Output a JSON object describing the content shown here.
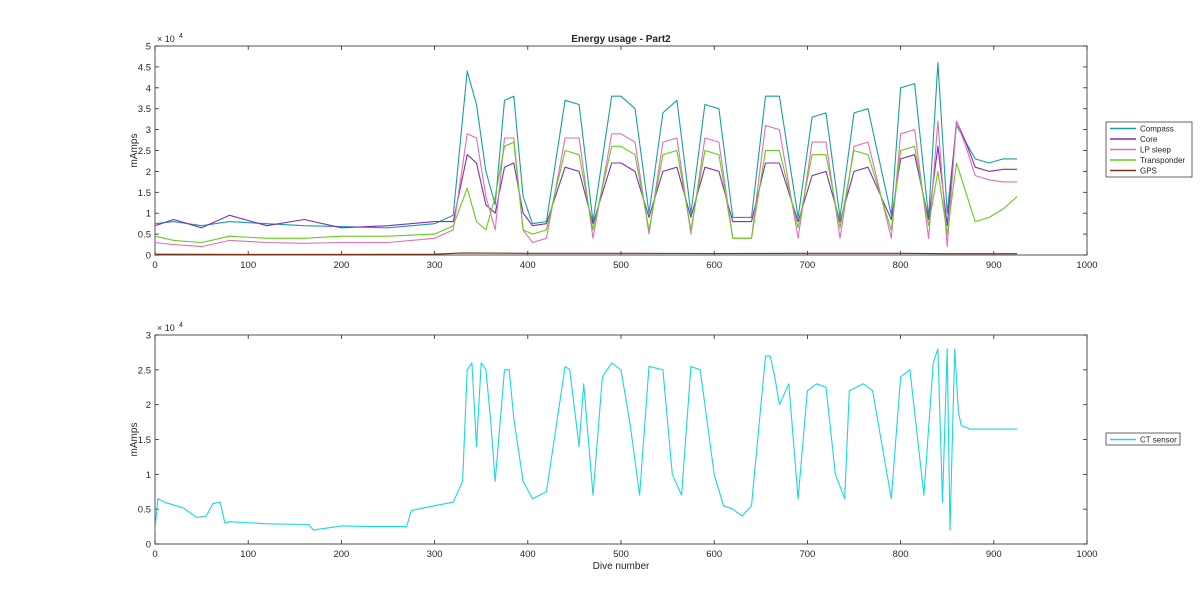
{
  "chart_data": [
    {
      "type": "line",
      "title": "Energy usage - Part2",
      "xlabel": "",
      "ylabel": "mAmps",
      "y_exponent_label": "× 10",
      "y_exponent": "4",
      "xlim": [
        0,
        1000
      ],
      "ylim": [
        0,
        50000
      ],
      "xticks": [
        0,
        100,
        200,
        300,
        400,
        500,
        600,
        700,
        800,
        900,
        1000
      ],
      "yticks": [
        0,
        5000,
        10000,
        15000,
        20000,
        25000,
        30000,
        35000,
        40000,
        45000,
        50000
      ],
      "ytick_labels": [
        "0",
        "0.5",
        "1",
        "1.5",
        "2",
        "2.5",
        "3",
        "3.5",
        "4",
        "4.5",
        "5"
      ],
      "grid": false,
      "legend": "outside-right",
      "series": [
        {
          "name": "Compass",
          "color": "#1a9e9e",
          "x": [
            0,
            20,
            50,
            80,
            120,
            160,
            200,
            250,
            300,
            320,
            335,
            345,
            355,
            365,
            375,
            385,
            395,
            405,
            420,
            440,
            455,
            470,
            490,
            500,
            515,
            530,
            545,
            560,
            575,
            590,
            605,
            620,
            640,
            655,
            670,
            690,
            705,
            720,
            735,
            750,
            765,
            790,
            800,
            815,
            830,
            840,
            850,
            860,
            870,
            880,
            895,
            910,
            925
          ],
          "y": [
            7500,
            8000,
            7000,
            8000,
            7500,
            7000,
            6800,
            6500,
            7500,
            9500,
            44000,
            36000,
            20000,
            12000,
            37000,
            38000,
            14000,
            7500,
            8000,
            37000,
            36000,
            8000,
            38000,
            38000,
            35000,
            10000,
            34000,
            37000,
            10000,
            36000,
            35000,
            9000,
            9000,
            38000,
            38000,
            9000,
            33000,
            34000,
            9000,
            34000,
            35000,
            9500,
            40000,
            41000,
            9000,
            46000,
            10000,
            31000,
            27000,
            23000,
            22000,
            23000,
            23000
          ]
        },
        {
          "name": "Core",
          "color": "#7b2fbf",
          "x": [
            0,
            20,
            50,
            80,
            120,
            160,
            200,
            250,
            300,
            320,
            335,
            345,
            355,
            365,
            375,
            385,
            395,
            405,
            420,
            440,
            455,
            470,
            490,
            500,
            515,
            530,
            545,
            560,
            575,
            590,
            605,
            620,
            640,
            655,
            670,
            690,
            705,
            720,
            735,
            750,
            765,
            790,
            800,
            815,
            830,
            840,
            850,
            860,
            870,
            880,
            895,
            910,
            925
          ],
          "y": [
            7000,
            8500,
            6500,
            9500,
            7000,
            8500,
            6500,
            7000,
            8000,
            8000,
            24000,
            22000,
            12000,
            10000,
            21000,
            22000,
            10000,
            7000,
            7500,
            21000,
            20000,
            7500,
            22000,
            22000,
            20000,
            9000,
            20000,
            21000,
            9000,
            21000,
            20000,
            8000,
            8000,
            22000,
            22000,
            8000,
            19000,
            20000,
            8000,
            20000,
            21000,
            8500,
            23000,
            24000,
            8500,
            26000,
            7000,
            32000,
            27000,
            21000,
            20000,
            20500,
            20500
          ]
        },
        {
          "name": "LP sleep",
          "color": "#e070b5",
          "x": [
            0,
            20,
            50,
            80,
            120,
            160,
            200,
            250,
            300,
            320,
            335,
            345,
            355,
            365,
            375,
            385,
            395,
            405,
            420,
            440,
            455,
            470,
            490,
            500,
            515,
            530,
            545,
            560,
            575,
            590,
            605,
            620,
            640,
            655,
            670,
            690,
            705,
            720,
            735,
            750,
            765,
            790,
            800,
            815,
            830,
            840,
            850,
            860,
            870,
            880,
            895,
            910,
            925
          ],
          "y": [
            3000,
            2500,
            2000,
            3500,
            3000,
            2800,
            3000,
            3000,
            4000,
            6000,
            29000,
            28000,
            14000,
            6000,
            28000,
            28000,
            6000,
            3000,
            4000,
            28000,
            28000,
            4000,
            29000,
            29000,
            27000,
            5000,
            27000,
            28000,
            5000,
            28000,
            27000,
            4000,
            4000,
            31000,
            30000,
            4000,
            27000,
            27000,
            4000,
            26000,
            27000,
            4000,
            29000,
            30000,
            4000,
            32000,
            2000,
            32000,
            26000,
            19000,
            18000,
            17500,
            17500
          ]
        },
        {
          "name": "Transponder",
          "color": "#66cc1a",
          "x": [
            0,
            20,
            50,
            80,
            120,
            160,
            200,
            250,
            300,
            320,
            335,
            345,
            355,
            365,
            375,
            385,
            395,
            405,
            420,
            440,
            455,
            470,
            490,
            500,
            515,
            530,
            545,
            560,
            575,
            590,
            605,
            620,
            640,
            655,
            670,
            690,
            705,
            720,
            735,
            750,
            765,
            790,
            800,
            815,
            830,
            840,
            850,
            860,
            870,
            880,
            895,
            910,
            925
          ],
          "y": [
            4500,
            3500,
            3000,
            4500,
            4000,
            4000,
            4500,
            4500,
            5000,
            7000,
            16000,
            8000,
            6000,
            14000,
            26000,
            27000,
            6000,
            5000,
            6000,
            25000,
            24000,
            6000,
            26000,
            26000,
            24000,
            6000,
            24000,
            25000,
            6000,
            25000,
            24000,
            4000,
            4000,
            25000,
            25000,
            6500,
            24000,
            24000,
            6500,
            25000,
            24000,
            6000,
            25000,
            26000,
            7000,
            20000,
            5000,
            22000,
            15000,
            8000,
            9000,
            11000,
            14000
          ]
        },
        {
          "name": "GPS",
          "color": "#7a3010",
          "x": [
            0,
            100,
            200,
            300,
            330,
            400,
            500,
            600,
            700,
            800,
            850,
            900,
            925
          ],
          "y": [
            200,
            150,
            150,
            200,
            500,
            400,
            400,
            350,
            400,
            400,
            300,
            300,
            300
          ]
        }
      ]
    },
    {
      "type": "line",
      "title": "",
      "xlabel": "Dive number",
      "ylabel": "mAmps",
      "y_exponent_label": "× 10",
      "y_exponent": "4",
      "xlim": [
        0,
        1000
      ],
      "ylim": [
        0,
        30000
      ],
      "xticks": [
        0,
        100,
        200,
        300,
        400,
        500,
        600,
        700,
        800,
        900,
        1000
      ],
      "yticks": [
        0,
        5000,
        10000,
        15000,
        20000,
        25000,
        30000
      ],
      "ytick_labels": [
        "0",
        "0.5",
        "1",
        "1.5",
        "2",
        "2.5",
        "3"
      ],
      "grid": false,
      "legend": "outside-right",
      "series": [
        {
          "name": "CT sensor",
          "color": "#1ad6e6",
          "x": [
            0,
            3,
            10,
            30,
            45,
            55,
            62,
            70,
            75,
            80,
            120,
            165,
            170,
            200,
            230,
            270,
            275,
            300,
            320,
            330,
            335,
            340,
            345,
            350,
            355,
            360,
            365,
            375,
            380,
            385,
            395,
            405,
            420,
            440,
            445,
            455,
            460,
            470,
            480,
            490,
            500,
            510,
            520,
            530,
            545,
            555,
            565,
            575,
            585,
            600,
            610,
            620,
            630,
            640,
            655,
            660,
            665,
            670,
            680,
            690,
            700,
            710,
            720,
            730,
            740,
            745,
            760,
            770,
            790,
            800,
            810,
            825,
            835,
            840,
            845,
            850,
            853,
            858,
            862,
            865,
            875,
            900,
            925
          ],
          "y": [
            2000,
            6500,
            6000,
            5200,
            3800,
            4000,
            5800,
            6000,
            3000,
            3200,
            2900,
            2800,
            2000,
            2600,
            2500,
            2500,
            4800,
            5500,
            6000,
            9000,
            25000,
            26000,
            14000,
            26000,
            25000,
            18000,
            9000,
            25000,
            25000,
            18000,
            9000,
            6500,
            7500,
            25500,
            25000,
            14000,
            23000,
            7000,
            24000,
            26000,
            25000,
            17000,
            7000,
            25500,
            25000,
            10000,
            7000,
            25500,
            25000,
            10000,
            5500,
            5000,
            4000,
            5500,
            27000,
            27000,
            24000,
            20000,
            23000,
            6500,
            22000,
            23000,
            22500,
            10000,
            6500,
            22000,
            23000,
            22000,
            6500,
            24000,
            25000,
            7000,
            26000,
            28000,
            6000,
            28000,
            2000,
            28000,
            19000,
            17000,
            16500,
            16500,
            16500
          ]
        }
      ]
    }
  ]
}
